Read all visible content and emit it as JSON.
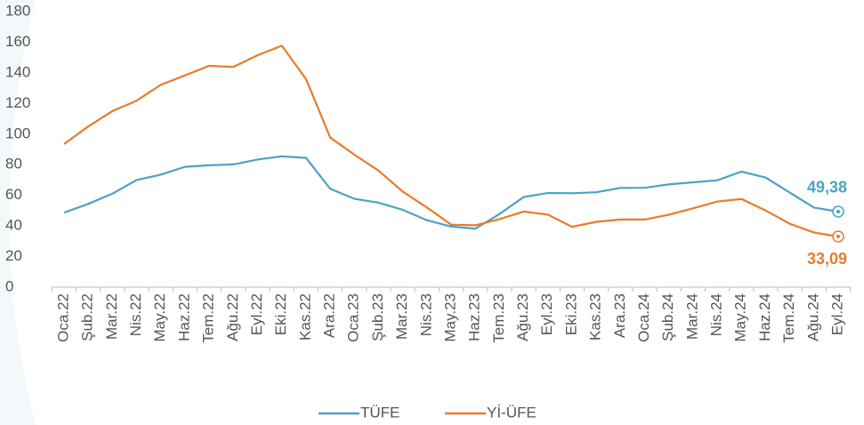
{
  "chart_data": {
    "type": "line",
    "categories": [
      "Oca.22",
      "Şub.22",
      "Mar.22",
      "Nis.22",
      "May.22",
      "Haz.22",
      "Tem.22",
      "Ağu.22",
      "Eyl.22",
      "Eki.22",
      "Kas.22",
      "Ara.22",
      "Oca.23",
      "Şub.23",
      "Mar.23",
      "Nis.23",
      "May.23",
      "Haz.23",
      "Tem.23",
      "Ağu.23",
      "Eyl.23",
      "Eki.23",
      "Kas.23",
      "Ara.23",
      "Oca.24",
      "Şub.24",
      "Mar.24",
      "Nis.24",
      "May.24",
      "Haz.24",
      "Tem.24",
      "Ağu.24",
      "Eyl.24"
    ],
    "series": [
      {
        "name": "TÜFE",
        "color": "#4ba3c3",
        "values": [
          48.7,
          54.4,
          61.1,
          70,
          73.5,
          78.6,
          79.6,
          80.2,
          83.4,
          85.5,
          84.4,
          64.3,
          57.7,
          55.2,
          50.5,
          43.7,
          39.6,
          38.2,
          47.8,
          58.9,
          61.5,
          61.4,
          62,
          64.8,
          64.9,
          67.1,
          68.5,
          69.8,
          75.5,
          71.6,
          61.8,
          52,
          49.38
        ],
        "value_labels": [
          null,
          null,
          null,
          null,
          null,
          null,
          null,
          null,
          null,
          null,
          null,
          null,
          null,
          null,
          null,
          null,
          null,
          null,
          null,
          null,
          null,
          null,
          null,
          null,
          null,
          null,
          null,
          null,
          null,
          null,
          null,
          null,
          "49,38"
        ]
      },
      {
        "name": "Yİ-ÜFE",
        "color": "#ea7a2c",
        "values": [
          93.5,
          105,
          115,
          121.8,
          132.2,
          138.3,
          144.6,
          143.8,
          151.5,
          157.7,
          136,
          97.7,
          86.5,
          76.1,
          62.4,
          52.1,
          40.8,
          40.4,
          44.5,
          49.4,
          47.4,
          39.4,
          42.7,
          44.2,
          44.2,
          47.3,
          51.5,
          55.9,
          57.6,
          50.1,
          41.4,
          35.7,
          33.09
        ],
        "value_labels": [
          null,
          null,
          null,
          null,
          null,
          null,
          null,
          null,
          null,
          null,
          null,
          null,
          null,
          null,
          null,
          null,
          null,
          null,
          null,
          null,
          null,
          null,
          null,
          null,
          null,
          null,
          null,
          null,
          null,
          null,
          null,
          null,
          "33,09"
        ]
      }
    ],
    "ylim": [
      0,
      180
    ],
    "yticks": [
      0,
      20,
      40,
      60,
      80,
      100,
      120,
      140,
      160,
      180
    ],
    "grid": false,
    "legend": "bottom"
  }
}
